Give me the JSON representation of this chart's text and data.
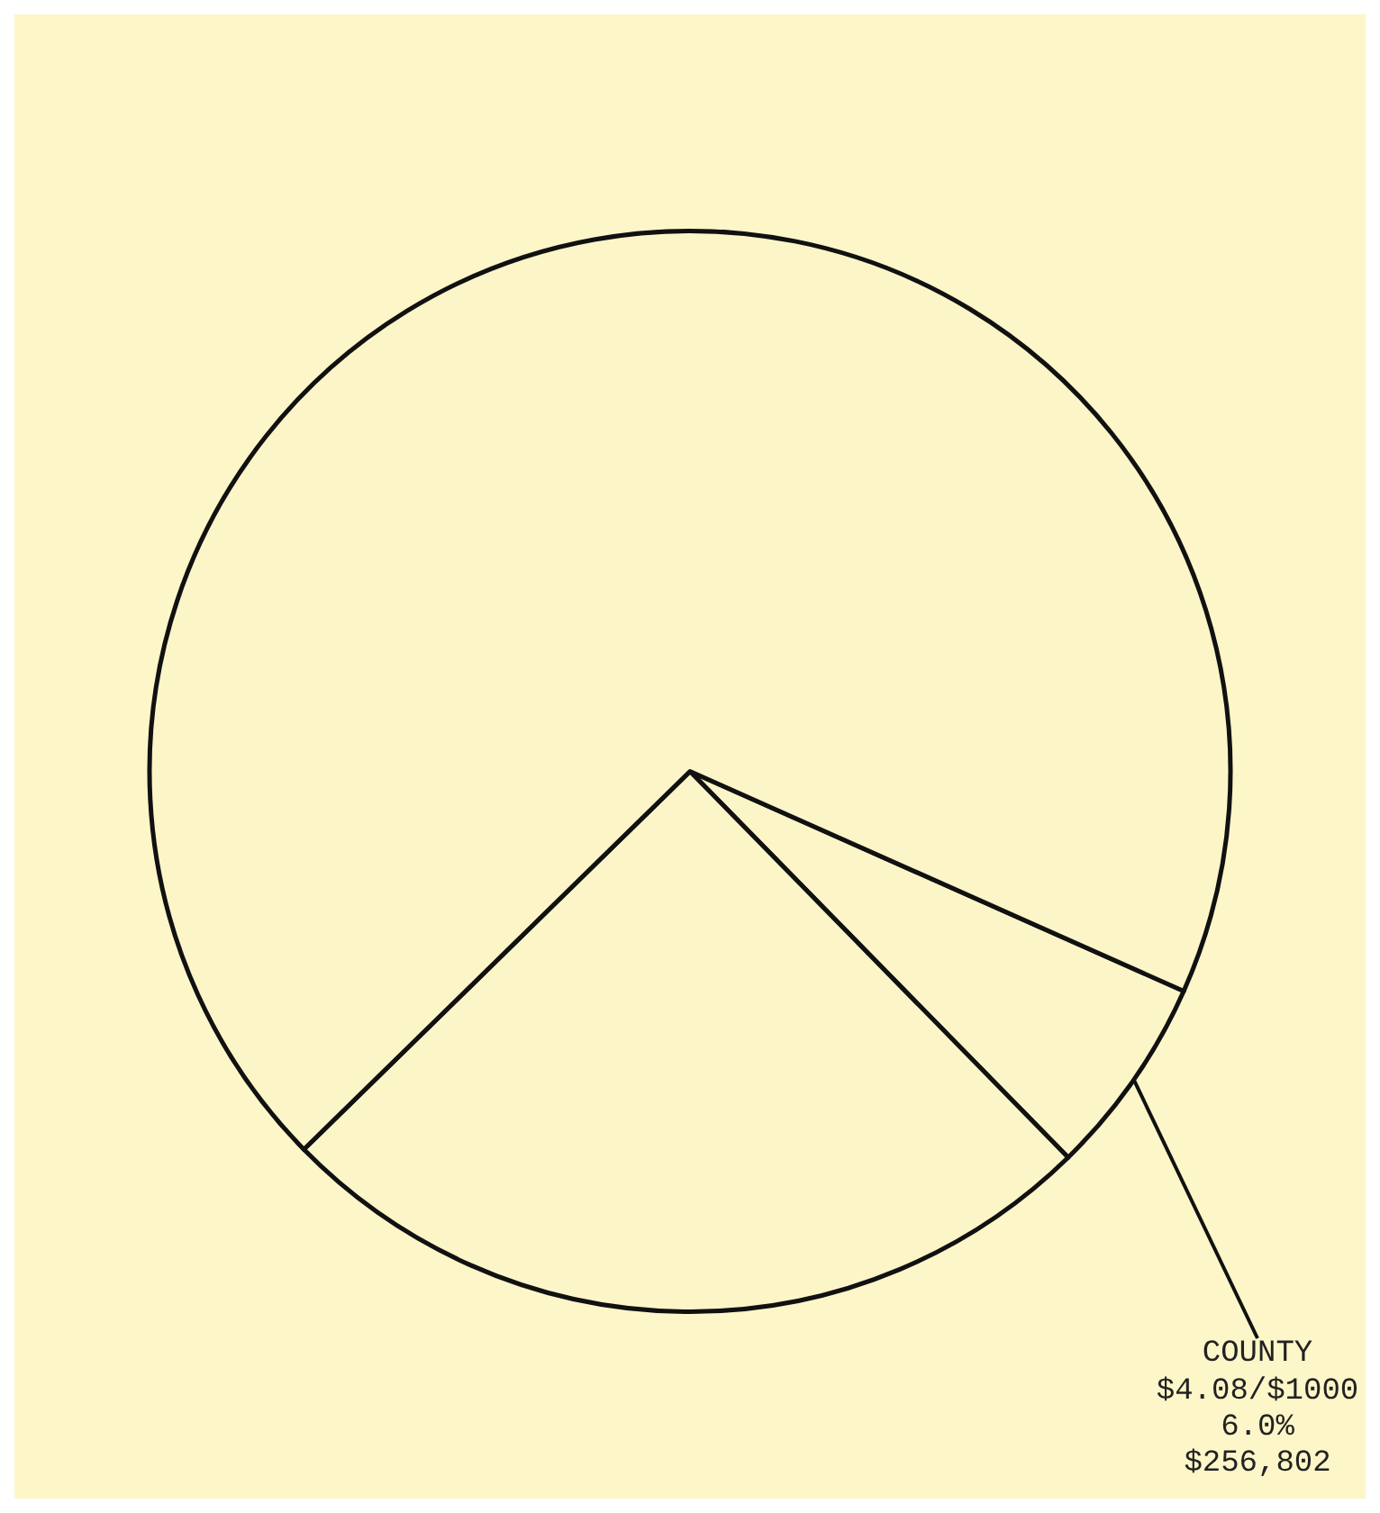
{
  "chart_data": {
    "type": "pie",
    "categories": [
      "COUNTY",
      null,
      null
    ],
    "values": [
      6.0,
      25,
      69
    ],
    "colors": [
      "#fbf5c8",
      "#fbf5c8",
      "#fbf5c8"
    ],
    "value_labels": [
      "$4.08/$1000\n6.0%\n$256,802",
      null,
      null
    ],
    "legend": false
  }
}
